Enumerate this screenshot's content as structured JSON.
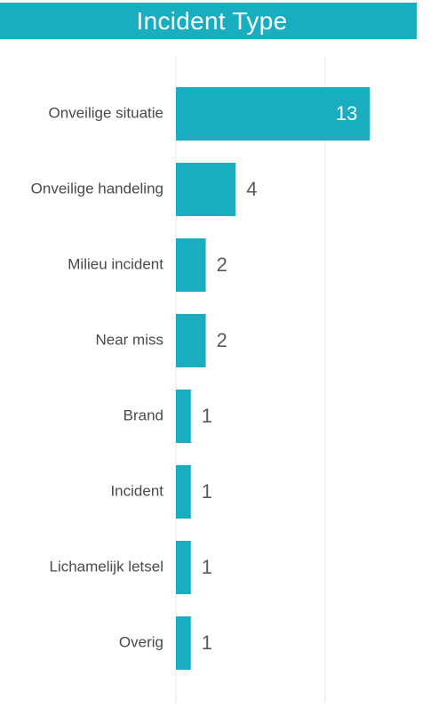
{
  "colors": {
    "accent": "#19aebf",
    "label": "#4a4a4a",
    "value_outside": "#5a5a5a",
    "value_inside": "#ffffff",
    "gridline": "#e6e6e6"
  },
  "chart_data": {
    "type": "bar",
    "orientation": "horizontal",
    "title": "Incident Type",
    "categories": [
      "Onveilige situatie",
      "Onveilige handeling",
      "Milieu incident",
      "Near miss",
      "Brand",
      "Incident",
      "Lichamelijk letsel",
      "Overig"
    ],
    "values": [
      13,
      4,
      2,
      2,
      1,
      1,
      1,
      1
    ],
    "xlabel": "",
    "ylabel": "",
    "xlim": [
      0,
      16
    ],
    "grid": true,
    "data_labels": true
  }
}
